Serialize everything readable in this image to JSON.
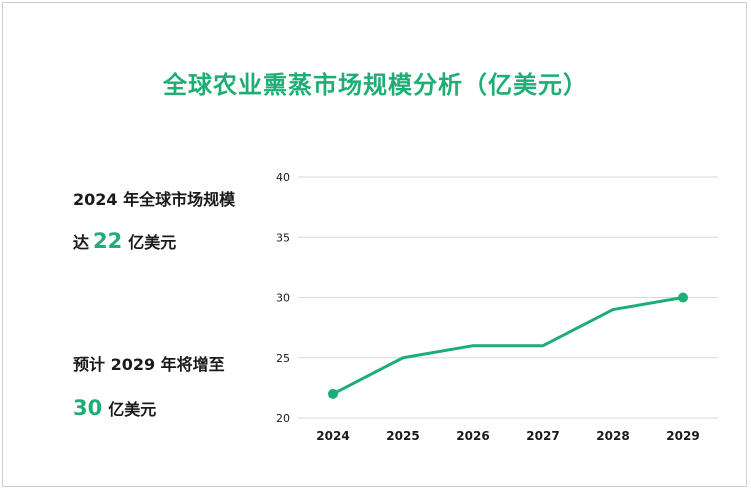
{
  "title": "全球农业熏蒸市场规模分析（亿美元）",
  "stats": {
    "line1": "2024 年全球市场规模",
    "line2_prefix": "达",
    "value_2024": "22",
    "unit": "亿美元",
    "line3": "预计 2029 年将增至",
    "value_2029": "30"
  },
  "colors": {
    "accent": "#1cae74",
    "grid": "#d9d9d9",
    "text": "#1a1a1a"
  },
  "chart_data": {
    "type": "line",
    "categories": [
      "2024",
      "2025",
      "2026",
      "2027",
      "2028",
      "2029"
    ],
    "series": [
      {
        "values": [
          22,
          25,
          26,
          26,
          29,
          30
        ]
      }
    ],
    "ylim": [
      20,
      40
    ],
    "yticks": [
      20,
      25,
      30,
      35,
      40
    ],
    "markers_on": [
      "2024",
      "2029"
    ],
    "grid": true,
    "title": "",
    "xlabel": "",
    "ylabel": ""
  }
}
